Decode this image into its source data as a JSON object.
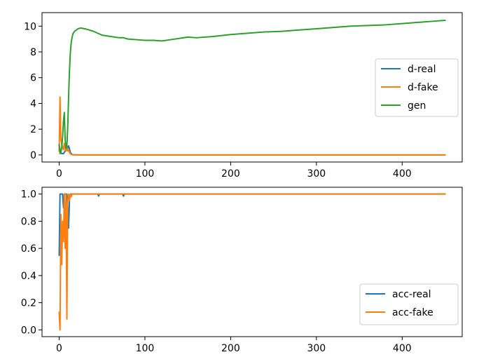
{
  "chart_data": [
    {
      "type": "line",
      "title": "",
      "xlabel": "",
      "ylabel": "",
      "xlim": [
        -20,
        470
      ],
      "ylim": [
        -0.55,
        11.05
      ],
      "xticks": [
        0,
        100,
        200,
        300,
        400
      ],
      "yticks": [
        0,
        2,
        4,
        6,
        8,
        10
      ],
      "grid": false,
      "legend_position": "center-right",
      "series": [
        {
          "name": "d-real",
          "color": "#1f77b4",
          "x": [
            0,
            1,
            2,
            3,
            4,
            5,
            6,
            7,
            8,
            9,
            10,
            11,
            12,
            13,
            14,
            15,
            16,
            17,
            18,
            20,
            25,
            30,
            40,
            50,
            75,
            100,
            150,
            200,
            250,
            300,
            350,
            400,
            450
          ],
          "y": [
            0.7,
            0.4,
            0.2,
            0.1,
            0.1,
            0.1,
            0.2,
            0.3,
            0.6,
            0.7,
            0.5,
            0.7,
            0.5,
            0.2,
            0.1,
            0.05,
            0.02,
            0.01,
            0.01,
            0.01,
            0,
            0,
            0,
            0,
            0,
            0,
            0,
            0,
            0,
            0,
            0,
            0,
            0
          ]
        },
        {
          "name": "d-fake",
          "color": "#ff7f0e",
          "x": [
            0,
            1,
            2,
            3,
            4,
            5,
            6,
            7,
            8,
            9,
            10,
            11,
            12,
            13,
            14,
            15,
            16,
            17,
            18,
            20,
            25,
            30,
            40,
            50,
            75,
            100,
            150,
            200,
            250,
            300,
            350,
            400,
            450
          ],
          "y": [
            0.3,
            4.5,
            1.2,
            0.8,
            0.6,
            0.4,
            0.9,
            0.5,
            0.3,
            0.6,
            0.3,
            0.4,
            0.2,
            0.1,
            0.05,
            0.02,
            0.01,
            0.01,
            0.01,
            0,
            0,
            0,
            0,
            0,
            0,
            0,
            0,
            0,
            0,
            0,
            0,
            0,
            0
          ]
        },
        {
          "name": "gen",
          "color": "#2ca02c",
          "x": [
            0,
            1,
            2,
            3,
            4,
            5,
            6,
            7,
            8,
            9,
            10,
            11,
            12,
            13,
            14,
            15,
            16,
            18,
            20,
            22,
            25,
            30,
            40,
            50,
            60,
            70,
            75,
            80,
            90,
            100,
            110,
            120,
            130,
            140,
            150,
            160,
            180,
            200,
            220,
            240,
            260,
            280,
            300,
            320,
            340,
            360,
            380,
            400,
            420,
            440,
            450
          ],
          "y": [
            0.8,
            0.1,
            0.2,
            0.6,
            1.4,
            2.6,
            3.3,
            1.2,
            0.5,
            0.7,
            2.2,
            4.5,
            6.5,
            7.9,
            8.7,
            9.1,
            9.4,
            9.6,
            9.7,
            9.8,
            9.85,
            9.8,
            9.6,
            9.3,
            9.2,
            9.1,
            9.1,
            9.0,
            8.95,
            8.9,
            8.9,
            8.85,
            8.95,
            9.05,
            9.15,
            9.1,
            9.2,
            9.35,
            9.45,
            9.55,
            9.6,
            9.7,
            9.8,
            9.9,
            10.0,
            10.05,
            10.1,
            10.2,
            10.3,
            10.4,
            10.45
          ]
        }
      ]
    },
    {
      "type": "line",
      "title": "",
      "xlabel": "",
      "ylabel": "",
      "xlim": [
        -20,
        470
      ],
      "ylim": [
        -0.05,
        1.05
      ],
      "xticks": [
        0,
        100,
        200,
        300,
        400
      ],
      "yticks": [
        0.0,
        0.2,
        0.4,
        0.6,
        0.8,
        1.0
      ],
      "grid": false,
      "legend_position": "bottom-right",
      "series": [
        {
          "name": "acc-real",
          "color": "#1f77b4",
          "x": [
            0,
            1,
            2,
            3,
            4,
            5,
            6,
            7,
            8,
            9,
            10,
            11,
            12,
            13,
            14,
            15,
            16,
            18,
            20,
            30,
            45,
            46,
            47,
            48,
            60,
            74,
            75,
            76,
            77,
            100,
            200,
            300,
            400,
            450
          ],
          "y": [
            0.55,
            1.0,
            1.0,
            1.0,
            1.0,
            0.9,
            1.0,
            1.0,
            1.0,
            1.0,
            0.9,
            0.75,
            0.95,
            1.0,
            1.0,
            1.0,
            1.0,
            1.0,
            1.0,
            1.0,
            1.0,
            0.985,
            1.0,
            1.0,
            1.0,
            1.0,
            0.985,
            1.0,
            1.0,
            1.0,
            1.0,
            1.0,
            1.0,
            1.0
          ]
        },
        {
          "name": "acc-fake",
          "color": "#ff7f0e",
          "x": [
            0,
            1,
            2,
            3,
            4,
            5,
            6,
            7,
            8,
            9,
            10,
            11,
            12,
            13,
            14,
            15,
            16,
            18,
            20,
            30,
            100,
            200,
            300,
            400,
            450
          ],
          "y": [
            0.13,
            0.0,
            0.85,
            0.48,
            0.8,
            0.65,
            1.0,
            0.6,
            1.0,
            0.08,
            0.95,
            1.0,
            0.95,
            1.0,
            0.98,
            1.0,
            1.0,
            1.0,
            1.0,
            1.0,
            1.0,
            1.0,
            1.0,
            1.0,
            1.0
          ]
        }
      ]
    }
  ]
}
